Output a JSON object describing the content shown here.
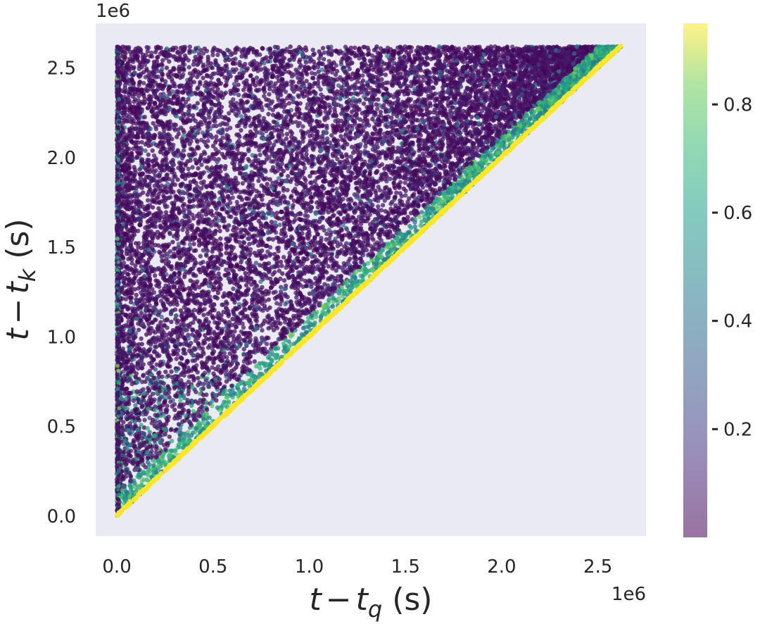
{
  "chart_data": {
    "type": "scatter",
    "title": "",
    "xlabel": {
      "var": "t",
      "minus": "−",
      "sub_var": "t",
      "sub": "q",
      "unit": "(s)"
    },
    "ylabel": {
      "var": "t",
      "minus": "−",
      "sub_var": "t",
      "sub": "k",
      "unit": "(s)"
    },
    "x_offset_text": "1e6",
    "y_offset_text": "1e6",
    "xlim": [
      -0.11,
      2.75
    ],
    "ylim": [
      -0.11,
      2.75
    ],
    "x_ticks": [
      {
        "value": 0.0,
        "label": "0.0"
      },
      {
        "value": 0.5,
        "label": "0.5"
      },
      {
        "value": 1.0,
        "label": "1.0"
      },
      {
        "value": 1.5,
        "label": "1.5"
      },
      {
        "value": 2.0,
        "label": "2.0"
      },
      {
        "value": 2.5,
        "label": "2.5"
      }
    ],
    "y_ticks": [
      {
        "value": 0.0,
        "label": "0.0"
      },
      {
        "value": 0.5,
        "label": "0.5"
      },
      {
        "value": 1.0,
        "label": "1.0"
      },
      {
        "value": 1.5,
        "label": "1.5"
      },
      {
        "value": 2.0,
        "label": "2.0"
      },
      {
        "value": 2.5,
        "label": "2.5"
      }
    ],
    "grid": false,
    "background": "#eaeaf2",
    "colormap": "viridis",
    "point_alpha": 0.5,
    "colorbar": {
      "range": [
        0.0,
        0.95
      ],
      "ticks": [
        {
          "value": 0.2,
          "label": "0.2"
        },
        {
          "value": 0.4,
          "label": "0.4"
        },
        {
          "value": 0.6,
          "label": "0.6"
        },
        {
          "value": 0.8,
          "label": "0.8"
        }
      ]
    },
    "data_summary": {
      "x_range": [
        0.0,
        2.62
      ],
      "y_range": [
        0.0,
        2.62
      ],
      "constraint": "y >= x",
      "diagonal_value": 0.95,
      "typical_value": 0.0,
      "column_near_x0": true
    }
  }
}
